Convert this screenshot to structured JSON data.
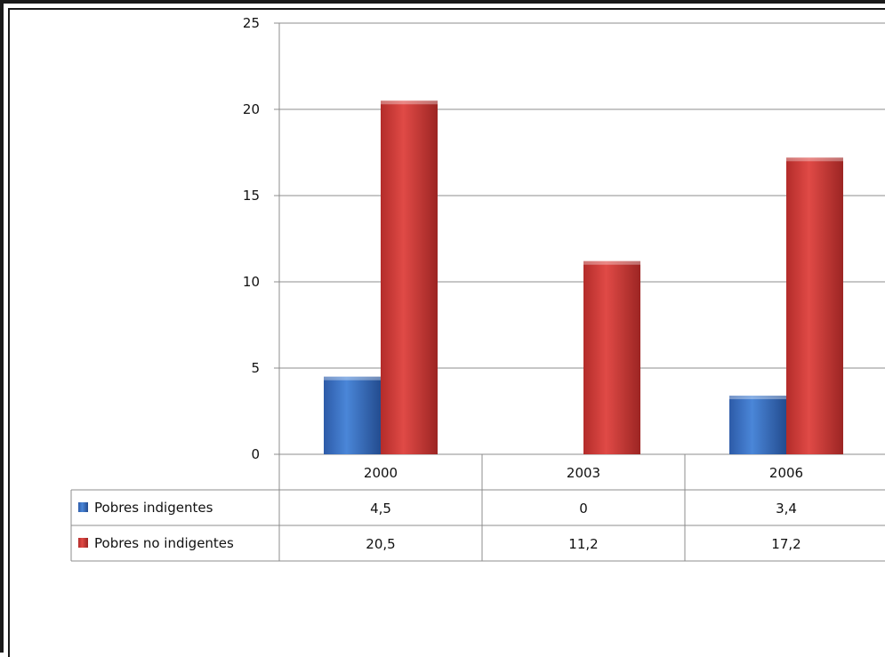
{
  "chart_data": {
    "type": "bar",
    "categories": [
      "2000",
      "2003",
      "2006"
    ],
    "series": [
      {
        "name": "Pobres indigentes",
        "values": [
          4.5,
          0,
          3.4
        ],
        "labels": [
          "4,5",
          "0",
          "3,4"
        ],
        "color": "#3a6fc4"
      },
      {
        "name": "Pobres no indigentes",
        "values": [
          20.5,
          11.2,
          17.2
        ],
        "labels": [
          "20,5",
          "11,2",
          "17,2"
        ],
        "color": "#d23c3a"
      }
    ],
    "ylim": [
      0,
      25
    ],
    "yticks": [
      0,
      5,
      10,
      15,
      20,
      25
    ],
    "grid": true,
    "legend": "data-table"
  }
}
